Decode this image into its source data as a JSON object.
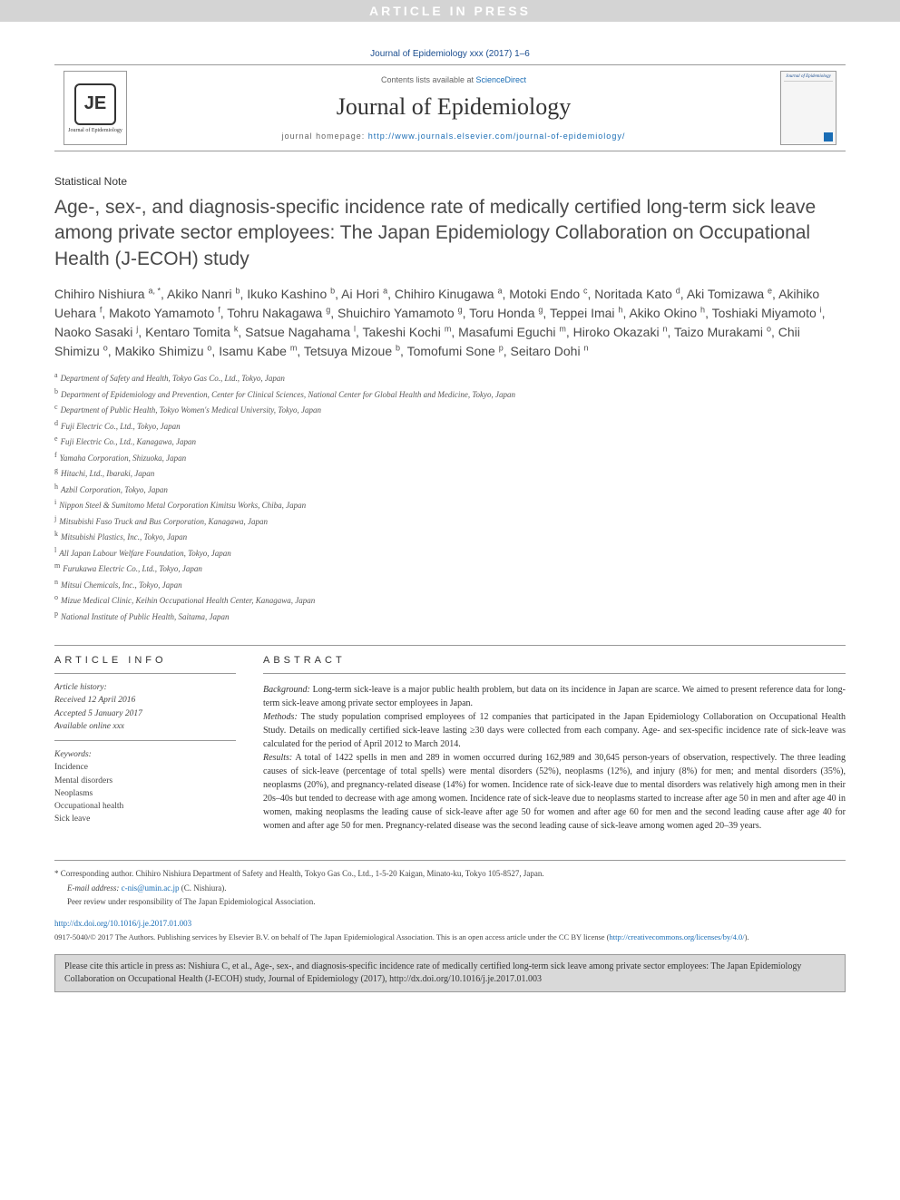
{
  "press_bar": "ARTICLE IN PRESS",
  "citation_header": "Journal of Epidemiology xxx (2017) 1–6",
  "journal_header": {
    "logo_letters": "JE",
    "logo_caption": "Journal of Epidemiology",
    "contents_prefix": "Contents lists available at ",
    "contents_link": "ScienceDirect",
    "journal_name": "Journal of Epidemiology",
    "homepage_prefix": "journal homepage: ",
    "homepage_url": "http://www.journals.elsevier.com/journal-of-epidemiology/",
    "cover_title": "Journal of Epidemiology"
  },
  "article_type": "Statistical Note",
  "article_title": "Age-, sex-, and diagnosis-specific incidence rate of medically certified long-term sick leave among private sector employees: The Japan Epidemiology Collaboration on Occupational Health (J-ECOH) study",
  "authors": [
    {
      "name": "Chihiro Nishiura",
      "aff": "a, *"
    },
    {
      "name": "Akiko Nanri",
      "aff": "b"
    },
    {
      "name": "Ikuko Kashino",
      "aff": "b"
    },
    {
      "name": "Ai Hori",
      "aff": "a"
    },
    {
      "name": "Chihiro Kinugawa",
      "aff": "a"
    },
    {
      "name": "Motoki Endo",
      "aff": "c"
    },
    {
      "name": "Noritada Kato",
      "aff": "d"
    },
    {
      "name": "Aki Tomizawa",
      "aff": "e"
    },
    {
      "name": "Akihiko Uehara",
      "aff": "f"
    },
    {
      "name": "Makoto Yamamoto",
      "aff": "f"
    },
    {
      "name": "Tohru Nakagawa",
      "aff": "g"
    },
    {
      "name": "Shuichiro Yamamoto",
      "aff": "g"
    },
    {
      "name": "Toru Honda",
      "aff": "g"
    },
    {
      "name": "Teppei Imai",
      "aff": "h"
    },
    {
      "name": "Akiko Okino",
      "aff": "h"
    },
    {
      "name": "Toshiaki Miyamoto",
      "aff": "i"
    },
    {
      "name": "Naoko Sasaki",
      "aff": "j"
    },
    {
      "name": "Kentaro Tomita",
      "aff": "k"
    },
    {
      "name": "Satsue Nagahama",
      "aff": "l"
    },
    {
      "name": "Takeshi Kochi",
      "aff": "m"
    },
    {
      "name": "Masafumi Eguchi",
      "aff": "m"
    },
    {
      "name": "Hiroko Okazaki",
      "aff": "n"
    },
    {
      "name": "Taizo Murakami",
      "aff": "o"
    },
    {
      "name": "Chii Shimizu",
      "aff": "o"
    },
    {
      "name": "Makiko Shimizu",
      "aff": "o"
    },
    {
      "name": "Isamu Kabe",
      "aff": "m"
    },
    {
      "name": "Tetsuya Mizoue",
      "aff": "b"
    },
    {
      "name": "Tomofumi Sone",
      "aff": "p"
    },
    {
      "name": "Seitaro Dohi",
      "aff": "n"
    }
  ],
  "affiliations": [
    {
      "key": "a",
      "text": "Department of Safety and Health, Tokyo Gas Co., Ltd., Tokyo, Japan"
    },
    {
      "key": "b",
      "text": "Department of Epidemiology and Prevention, Center for Clinical Sciences, National Center for Global Health and Medicine, Tokyo, Japan"
    },
    {
      "key": "c",
      "text": "Department of Public Health, Tokyo Women's Medical University, Tokyo, Japan"
    },
    {
      "key": "d",
      "text": "Fuji Electric Co., Ltd., Tokyo, Japan"
    },
    {
      "key": "e",
      "text": "Fuji Electric Co., Ltd., Kanagawa, Japan"
    },
    {
      "key": "f",
      "text": "Yamaha Corporation, Shizuoka, Japan"
    },
    {
      "key": "g",
      "text": "Hitachi, Ltd., Ibaraki, Japan"
    },
    {
      "key": "h",
      "text": "Azbil Corporation, Tokyo, Japan"
    },
    {
      "key": "i",
      "text": "Nippon Steel & Sumitomo Metal Corporation Kimitsu Works, Chiba, Japan"
    },
    {
      "key": "j",
      "text": "Mitsubishi Fuso Truck and Bus Corporation, Kanagawa, Japan"
    },
    {
      "key": "k",
      "text": "Mitsubishi Plastics, Inc., Tokyo, Japan"
    },
    {
      "key": "l",
      "text": "All Japan Labour Welfare Foundation, Tokyo, Japan"
    },
    {
      "key": "m",
      "text": "Furukawa Electric Co., Ltd., Tokyo, Japan"
    },
    {
      "key": "n",
      "text": "Mitsui Chemicals, Inc., Tokyo, Japan"
    },
    {
      "key": "o",
      "text": "Mizue Medical Clinic, Keihin Occupational Health Center, Kanagawa, Japan"
    },
    {
      "key": "p",
      "text": "National Institute of Public Health, Saitama, Japan"
    }
  ],
  "article_info": {
    "heading": "ARTICLE INFO",
    "history_label": "Article history:",
    "received": "Received 12 April 2016",
    "accepted": "Accepted 5 January 2017",
    "available": "Available online xxx",
    "keywords_label": "Keywords:",
    "keywords": [
      "Incidence",
      "Mental disorders",
      "Neoplasms",
      "Occupational health",
      "Sick leave"
    ]
  },
  "abstract": {
    "heading": "ABSTRACT",
    "background_label": "Background:",
    "background": "Long-term sick-leave is a major public health problem, but data on its incidence in Japan are scarce. We aimed to present reference data for long-term sick-leave among private sector employees in Japan.",
    "methods_label": "Methods:",
    "methods": "The study population comprised employees of 12 companies that participated in the Japan Epidemiology Collaboration on Occupational Health Study. Details on medically certified sick-leave lasting ≥30 days were collected from each company. Age- and sex-specific incidence rate of sick-leave was calculated for the period of April 2012 to March 2014.",
    "results_label": "Results:",
    "results": "A total of 1422 spells in men and 289 in women occurred during 162,989 and 30,645 person-years of observation, respectively. The three leading causes of sick-leave (percentage of total spells) were mental disorders (52%), neoplasms (12%), and injury (8%) for men; and mental disorders (35%), neoplasms (20%), and pregnancy-related disease (14%) for women. Incidence rate of sick-leave due to mental disorders was relatively high among men in their 20s–40s but tended to decrease with age among women. Incidence rate of sick-leave due to neoplasms started to increase after age 50 in men and after age 40 in women, making neoplasms the leading cause of sick-leave after age 50 for women and after age 60 for men and the second leading cause after age 40 for women and after age 50 for men. Pregnancy-related disease was the second leading cause of sick-leave among women aged 20–39 years."
  },
  "footer": {
    "corresponding": "* Corresponding author. Chihiro Nishiura Department of Safety and Health, Tokyo Gas Co., Ltd., 1-5-20 Kaigan, Minato-ku, Tokyo 105-8527, Japan.",
    "email_label": "E-mail address: ",
    "email": "c-nis@umin.ac.jp",
    "email_suffix": " (C. Nishiura).",
    "peer_review": "Peer review under responsibility of The Japan Epidemiological Association.",
    "doi": "http://dx.doi.org/10.1016/j.je.2017.01.003",
    "copyright": "0917-5040/© 2017 The Authors. Publishing services by Elsevier B.V. on behalf of The Japan Epidemiological Association. This is an open access article under the CC BY license (",
    "cc_url": "http://creativecommons.org/licenses/by/4.0/",
    "copyright_suffix": ").",
    "citation_box": "Please cite this article in press as: Nishiura C, et al., Age-, sex-, and diagnosis-specific incidence rate of medically certified long-term sick leave among private sector employees: The Japan Epidemiology Collaboration on Occupational Health (J-ECOH) study, Journal of Epidemiology (2017), http://dx.doi.org/10.1016/j.je.2017.01.003"
  },
  "colors": {
    "link": "#1a6db5",
    "citation_header": "#1a4d8f",
    "bar_bg": "#d4d4d4",
    "title_text": "#4a4a4a",
    "citebox_bg": "#d9d9d9"
  }
}
